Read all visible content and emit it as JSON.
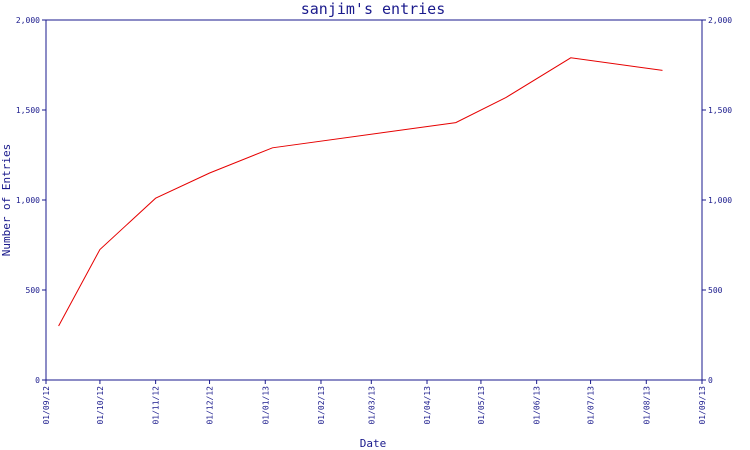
{
  "chart_data": {
    "type": "line",
    "title": "sanjim's entries",
    "xlabel": "Date",
    "ylabel": "Number of Entries",
    "ylim": [
      0,
      2000
    ],
    "xlim": [
      "2012-09-01",
      "2013-09-01"
    ],
    "y_ticks": [
      {
        "value": 0,
        "label": "0"
      },
      {
        "value": 500,
        "label": "500"
      },
      {
        "value": 1000,
        "label": "1,000"
      },
      {
        "value": 1500,
        "label": "1,500"
      },
      {
        "value": 2000,
        "label": "2,000"
      }
    ],
    "x_ticks": [
      {
        "date": "2012-09-01",
        "label": "01/09/12"
      },
      {
        "date": "2012-10-01",
        "label": "01/10/12"
      },
      {
        "date": "2012-11-01",
        "label": "01/11/12"
      },
      {
        "date": "2012-12-01",
        "label": "01/12/12"
      },
      {
        "date": "2013-01-01",
        "label": "01/01/13"
      },
      {
        "date": "2013-02-01",
        "label": "01/02/13"
      },
      {
        "date": "2013-03-01",
        "label": "01/03/13"
      },
      {
        "date": "2013-04-01",
        "label": "01/04/13"
      },
      {
        "date": "2013-05-01",
        "label": "01/05/13"
      },
      {
        "date": "2013-06-01",
        "label": "01/06/13"
      },
      {
        "date": "2013-07-01",
        "label": "01/07/13"
      },
      {
        "date": "2013-08-01",
        "label": "01/08/13"
      },
      {
        "date": "2013-09-01",
        "label": "01/09/13"
      }
    ],
    "grid": false,
    "series": [
      {
        "color": "#e60000",
        "points": [
          {
            "x": "2012-09-08",
            "y": 300
          },
          {
            "x": "2012-10-01",
            "y": 725
          },
          {
            "x": "2012-11-01",
            "y": 1010
          },
          {
            "x": "2012-12-01",
            "y": 1150
          },
          {
            "x": "2013-01-05",
            "y": 1290
          },
          {
            "x": "2013-04-17",
            "y": 1430
          },
          {
            "x": "2013-05-15",
            "y": 1570
          },
          {
            "x": "2013-06-20",
            "y": 1790
          },
          {
            "x": "2013-08-10",
            "y": 1720
          }
        ]
      }
    ]
  }
}
